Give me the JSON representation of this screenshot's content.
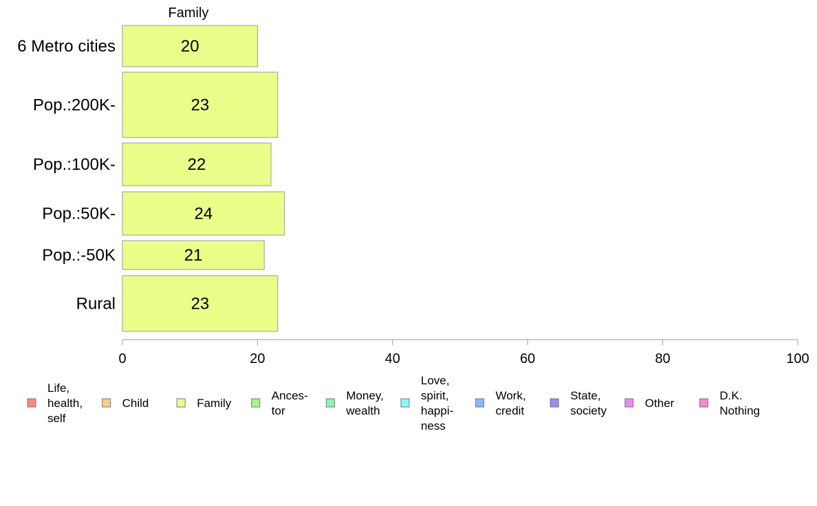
{
  "chart_data": {
    "type": "bar",
    "orientation": "horizontal",
    "panel_title": "Family",
    "categories": [
      "6 Metro cities",
      "Pop.:200K-",
      "Pop.:100K-",
      "Pop.:50K-",
      "Pop.:-50K",
      "Rural"
    ],
    "series": [
      {
        "name": "Family",
        "values": [
          20,
          23,
          22,
          24,
          21,
          23
        ],
        "color": "#eaff8a"
      }
    ],
    "xlim": [
      0,
      100
    ],
    "xticks": [
      0,
      20,
      40,
      60,
      80,
      100
    ],
    "legend_position": "bottom",
    "legend": [
      {
        "lines": [
          "Life,",
          "health,",
          "self"
        ],
        "color": "#f58a8a"
      },
      {
        "lines": [
          "Child"
        ],
        "color": "#f8cc8a"
      },
      {
        "lines": [
          "Family"
        ],
        "color": "#eaff8a"
      },
      {
        "lines": [
          "Ances-",
          "tor"
        ],
        "color": "#a8f58a"
      },
      {
        "lines": [
          "Money,",
          "wealth"
        ],
        "color": "#8af5b8"
      },
      {
        "lines": [
          "Love,",
          "spirit,",
          "happi-",
          "ness"
        ],
        "color": "#8afafa"
      },
      {
        "lines": [
          "Work,",
          "credit"
        ],
        "color": "#8ab8f5"
      },
      {
        "lines": [
          "State,",
          "society"
        ],
        "color": "#a08af5"
      },
      {
        "lines": [
          "Other"
        ],
        "color": "#e88af5"
      },
      {
        "lines": [
          "D.K.",
          "Nothing"
        ],
        "color": "#f58acc"
      }
    ]
  }
}
